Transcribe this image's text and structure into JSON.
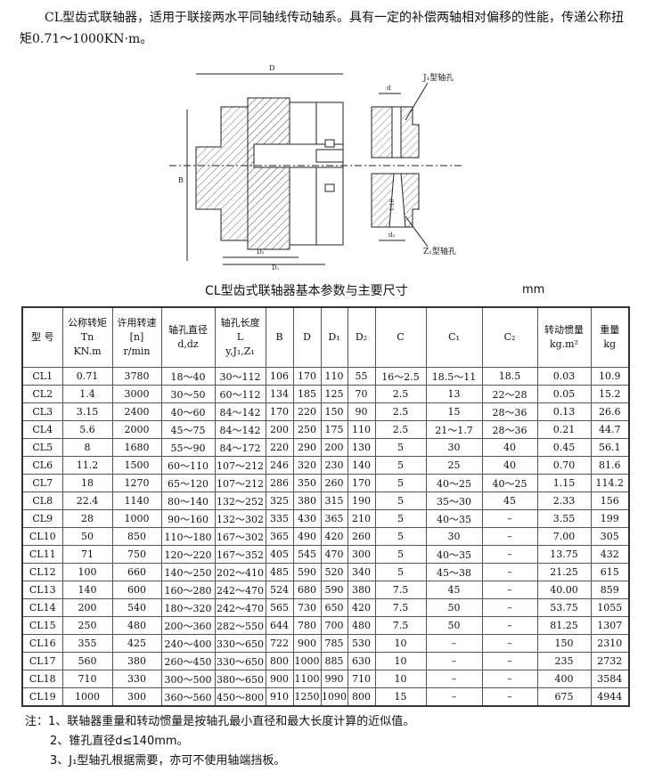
{
  "intro": "CL型齿式联轴器，适用于联接两水平同轴线传动轴系。具有一定的补偿两轴相对偏移的性能，传递公称扭矩0.71～1000KN·m。",
  "drawing": {
    "j1_label": "J₁型轴孔",
    "z1_label": "Z₁型轴孔",
    "taper": "1:10"
  },
  "table_title": "CL型齿式联轴器基本参数与主要尺寸",
  "unit": "mm",
  "columns": [
    [
      "型 号"
    ],
    [
      "公称转矩",
      "Tn",
      "KN.m"
    ],
    [
      "许用转速",
      "[n]",
      "r/min"
    ],
    [
      "轴孔直径",
      "d,dz"
    ],
    [
      "轴孔长度",
      "L",
      "y,J₁,Z₁"
    ],
    [
      "B"
    ],
    [
      "D"
    ],
    [
      "D₁"
    ],
    [
      "D₂"
    ],
    [
      "C"
    ],
    [
      "C₁"
    ],
    [
      "C₂"
    ],
    [
      "转动惯量",
      "kg.m²"
    ],
    [
      "重量",
      "kg"
    ]
  ],
  "rows": [
    [
      "CL1",
      "0.71",
      "3780",
      "18～40",
      "30～112",
      "106",
      "170",
      "110",
      "55",
      "16～2.5",
      "18.5～11",
      "18.5",
      "0.03",
      "10.9"
    ],
    [
      "CL2",
      "1.4",
      "3000",
      "30～50",
      "60～112",
      "134",
      "185",
      "125",
      "70",
      "2.5",
      "13",
      "22～28",
      "0.05",
      "15.2"
    ],
    [
      "CL3",
      "3.15",
      "2400",
      "40～60",
      "84～142",
      "170",
      "220",
      "150",
      "90",
      "2.5",
      "15",
      "28～36",
      "0.13",
      "26.6"
    ],
    [
      "CL4",
      "5.6",
      "2000",
      "45～75",
      "84～142",
      "200",
      "250",
      "175",
      "110",
      "2.5",
      "21～1.7",
      "28～36",
      "0.21",
      "44.7"
    ],
    [
      "CL5",
      "8",
      "1680",
      "55～90",
      "84～172",
      "220",
      "290",
      "200",
      "130",
      "5",
      "30",
      "40",
      "0.45",
      "56.1"
    ],
    [
      "CL6",
      "11.2",
      "1500",
      "60～110",
      "107～212",
      "246",
      "320",
      "230",
      "140",
      "5",
      "25",
      "40",
      "0.70",
      "81.6"
    ],
    [
      "CL7",
      "18",
      "1270",
      "65～120",
      "107～212",
      "286",
      "350",
      "260",
      "170",
      "5",
      "40～25",
      "40～25",
      "1.15",
      "114.2"
    ],
    [
      "CL8",
      "22.4",
      "1140",
      "80～140",
      "132～252",
      "325",
      "380",
      "315",
      "190",
      "5",
      "35～30",
      "45",
      "2.33",
      "156"
    ],
    [
      "CL9",
      "28",
      "1000",
      "90～160",
      "132～302",
      "335",
      "430",
      "365",
      "210",
      "5",
      "40～35",
      "–",
      "3.55",
      "199"
    ],
    [
      "CL10",
      "50",
      "850",
      "110～180",
      "167～302",
      "365",
      "490",
      "420",
      "260",
      "5",
      "30",
      "–",
      "7.00",
      "305"
    ],
    [
      "CL11",
      "71",
      "750",
      "120～220",
      "167～352",
      "405",
      "545",
      "470",
      "300",
      "5",
      "40～35",
      "–",
      "13.75",
      "432"
    ],
    [
      "CL12",
      "100",
      "660",
      "140～250",
      "202～410",
      "485",
      "590",
      "520",
      "340",
      "5",
      "45～38",
      "–",
      "21.25",
      "615"
    ],
    [
      "CL13",
      "140",
      "600",
      "160～280",
      "242～470",
      "524",
      "680",
      "590",
      "380",
      "7.5",
      "45",
      "–",
      "40.00",
      "859"
    ],
    [
      "CL14",
      "200",
      "540",
      "180～320",
      "242～470",
      "565",
      "730",
      "650",
      "420",
      "7.5",
      "50",
      "–",
      "53.75",
      "1055"
    ],
    [
      "CL15",
      "250",
      "480",
      "200～360",
      "282～550",
      "644",
      "780",
      "700",
      "480",
      "7.5",
      "50",
      "–",
      "81.25",
      "1307"
    ],
    [
      "CL16",
      "355",
      "425",
      "240～400",
      "330～650",
      "722",
      "900",
      "785",
      "530",
      "10",
      "–",
      "–",
      "150",
      "2310"
    ],
    [
      "CL17",
      "560",
      "380",
      "260～450",
      "330～650",
      "800",
      "1000",
      "885",
      "630",
      "10",
      "–",
      "–",
      "235",
      "2732"
    ],
    [
      "CL18",
      "710",
      "330",
      "300～500",
      "380～650",
      "900",
      "1100",
      "990",
      "710",
      "10",
      "–",
      "–",
      "400",
      "3584"
    ],
    [
      "CL19",
      "1000",
      "300",
      "360～560",
      "450～800",
      "910",
      "1250",
      "1090",
      "800",
      "15",
      "–",
      "–",
      "675",
      "4944"
    ]
  ],
  "notes": [
    "注：1、联轴器重量和转动惯量是按轴孔最小直径和最大长度计算的近似值。",
    "2、锥孔直径d≤140mm。",
    "3、J₁型轴孔根据需要，亦可不使用轴端挡板。"
  ]
}
